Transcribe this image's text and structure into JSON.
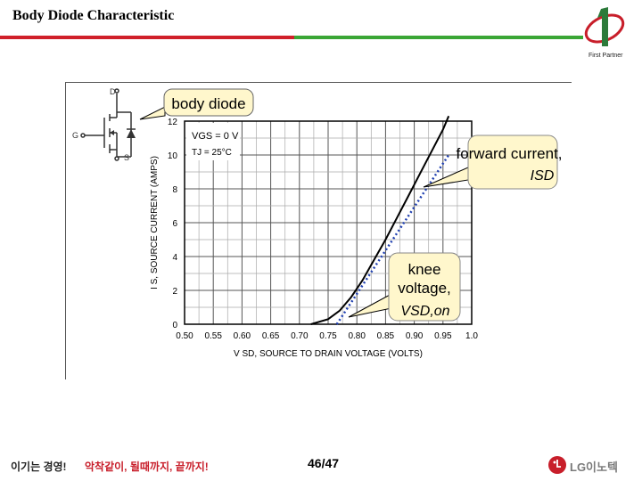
{
  "header": {
    "title": "Body Diode Characteristic",
    "logo_caption": "First Partner"
  },
  "chart_data": {
    "type": "line",
    "xlabel": "V SD, SOURCE TO DRAIN VOLTAGE (VOLTS)",
    "ylabel": "I S, SOURCE CURRENT (AMPS)",
    "xlim": [
      0.5,
      1.0
    ],
    "ylim": [
      0,
      12
    ],
    "x_ticks": [
      "0.50",
      "0.55",
      "0.60",
      "0.65",
      "0.70",
      "0.75",
      "0.80",
      "0.85",
      "0.90",
      "0.95",
      "1.0"
    ],
    "y_ticks": [
      "0",
      "2",
      "4",
      "6",
      "8",
      "10",
      "12"
    ],
    "conditions": [
      "VGS = 0 V",
      "TJ = 25°C"
    ],
    "series": [
      {
        "name": "I-V curve",
        "x": [
          0.72,
          0.75,
          0.77,
          0.79,
          0.81,
          0.83,
          0.85,
          0.87,
          0.89,
          0.91,
          0.93,
          0.95,
          0.96
        ],
        "y": [
          0.0,
          0.3,
          0.8,
          1.6,
          2.6,
          3.8,
          5.0,
          6.3,
          7.6,
          8.9,
          10.2,
          11.5,
          12.3
        ]
      },
      {
        "name": "linear approximation (dotted)",
        "x": [
          0.765,
          0.96
        ],
        "y": [
          0.0,
          10.0
        ]
      }
    ],
    "annotations": [
      {
        "text": "body diode"
      },
      {
        "text": "forward current,",
        "symbol": "ISD"
      },
      {
        "text": "knee voltage,",
        "symbol": "VSD,on"
      }
    ],
    "symbol_labels": [
      "D",
      "G",
      "S"
    ]
  },
  "footer": {
    "slogan": "이기는 경영!",
    "motto": "악착같이, 될때까지, 끝까지!",
    "page": "46/47",
    "brand": "LG이노텍"
  },
  "colors": {
    "accent_red": "#d0202a",
    "accent_green": "#3aa635",
    "curve": "#000000",
    "approx_line": "#1f3fb0",
    "callout_fill": "#fff7cc",
    "brand_red": "#c81e2a"
  }
}
